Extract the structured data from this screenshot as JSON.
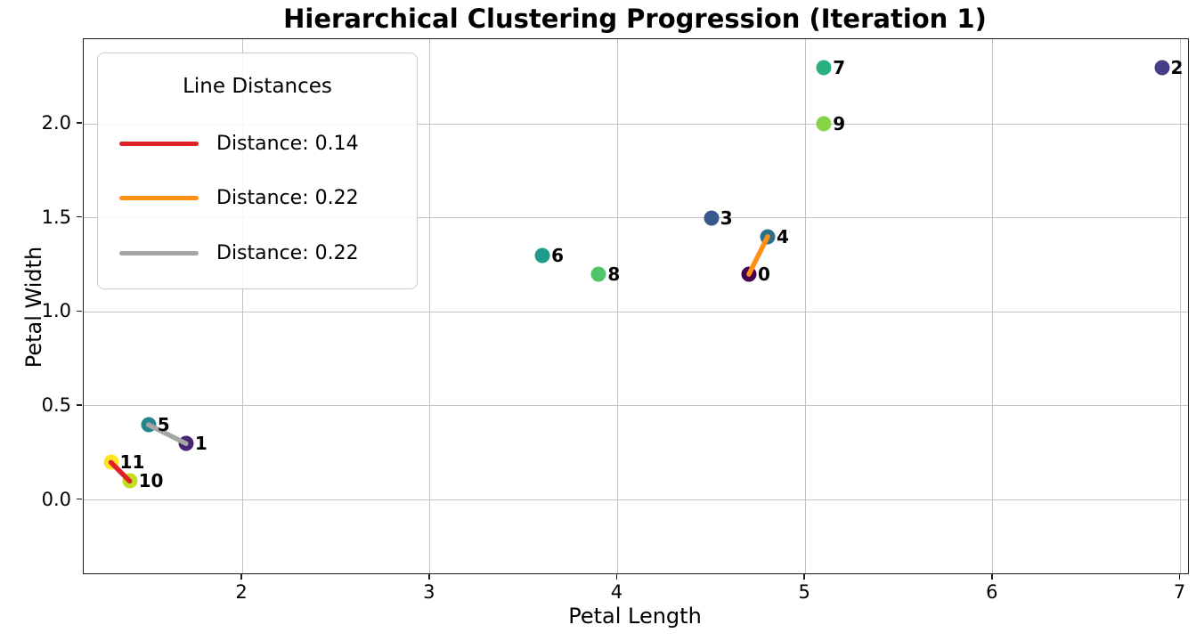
{
  "title": "Hierarchical Clustering Progression (Iteration 1)",
  "axes": {
    "xlabel": "Petal Length",
    "ylabel": "Petal Width"
  },
  "legend": {
    "title": "Line Distances",
    "entries": [
      {
        "label": "Distance: 0.14",
        "color": "#e02128"
      },
      {
        "label": "Distance: 0.22",
        "color": "#ff9015"
      },
      {
        "label": "Distance: 0.22",
        "color": "#a6a6a6"
      }
    ]
  },
  "chart_data": {
    "type": "scatter",
    "title": "Hierarchical Clustering Progression (Iteration 1)",
    "xlabel": "Petal Length",
    "ylabel": "Petal Width",
    "xlim": [
      1.155,
      7.04
    ],
    "ylim": [
      -0.39,
      2.45
    ],
    "xticks": [
      2,
      3,
      4,
      5,
      6,
      7
    ],
    "yticks": [
      0.0,
      0.5,
      1.0,
      1.5,
      2.0
    ],
    "grid": true,
    "grid_color": "#c3c3c3",
    "legend_position": "upper left",
    "points": [
      {
        "id": 0,
        "x": 4.7,
        "y": 1.2,
        "color": "#440154"
      },
      {
        "id": 1,
        "x": 1.7,
        "y": 0.3,
        "color": "#482475"
      },
      {
        "id": 2,
        "x": 6.9,
        "y": 2.3,
        "color": "#433e85"
      },
      {
        "id": 3,
        "x": 4.5,
        "y": 1.5,
        "color": "#38598c"
      },
      {
        "id": 4,
        "x": 4.8,
        "y": 1.4,
        "color": "#2d708e"
      },
      {
        "id": 5,
        "x": 1.5,
        "y": 0.4,
        "color": "#25858e"
      },
      {
        "id": 6,
        "x": 3.6,
        "y": 1.3,
        "color": "#1e9b8a"
      },
      {
        "id": 7,
        "x": 5.1,
        "y": 2.3,
        "color": "#2ab07f"
      },
      {
        "id": 8,
        "x": 3.9,
        "y": 1.2,
        "color": "#51c56a"
      },
      {
        "id": 9,
        "x": 5.1,
        "y": 2.0,
        "color": "#86d549"
      },
      {
        "id": 10,
        "x": 1.4,
        "y": 0.1,
        "color": "#c2df23"
      },
      {
        "id": 11,
        "x": 1.3,
        "y": 0.2,
        "color": "#fde725"
      }
    ],
    "lines": [
      {
        "from": 10,
        "to": 11,
        "distance": 0.14,
        "label": "Distance: 0.14",
        "color": "#e02128"
      },
      {
        "from": 0,
        "to": 4,
        "distance": 0.22,
        "label": "Distance: 0.22",
        "color": "#ff9015"
      },
      {
        "from": 1,
        "to": 5,
        "distance": 0.22,
        "label": "Distance: 0.22",
        "color": "#a6a6a6"
      }
    ]
  }
}
